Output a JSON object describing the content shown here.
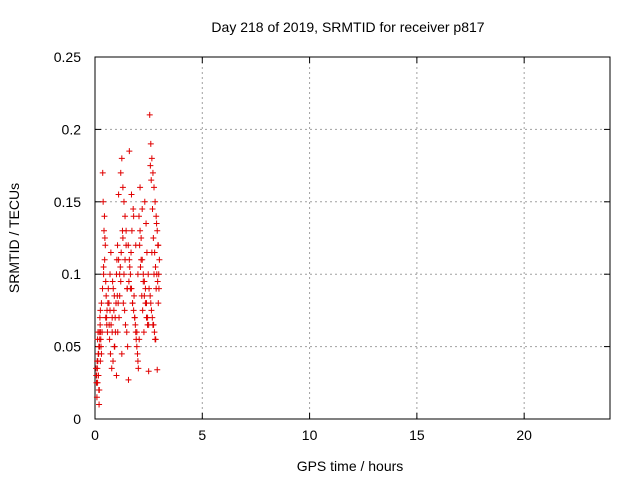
{
  "chart_data": {
    "type": "scatter",
    "title": "Day 218 of 2019, SRMTID for receiver p817",
    "xlabel": "GPS time / hours",
    "ylabel": "SRMTID / TECUs",
    "xlim": [
      0,
      24
    ],
    "ylim": [
      0,
      0.25
    ],
    "xticks": [
      0,
      5,
      10,
      15,
      20
    ],
    "xtick_labels": [
      "0",
      "5",
      "10",
      "15",
      "20"
    ],
    "yticks": [
      0,
      0.05,
      0.1,
      0.15,
      0.2,
      0.25
    ],
    "ytick_labels": [
      "0",
      "0.05",
      "0.1",
      "0.15",
      "0.2",
      "0.25"
    ],
    "grid": true,
    "marker": "+",
    "color": "#e00000",
    "series": [
      {
        "name": "p817",
        "x": [
          0.05,
          0.08,
          0.1,
          0.12,
          0.15,
          0.18,
          0.2,
          0.22,
          0.25,
          0.06,
          0.09,
          0.11,
          0.14,
          0.17,
          0.19,
          0.21,
          0.24,
          0.27,
          0.3,
          0.07,
          0.13,
          0.16,
          0.23,
          0.26,
          0.28,
          0.12,
          0.18,
          0.2,
          0.25,
          0.3,
          0.35,
          0.4,
          0.45,
          0.5,
          0.55,
          0.38,
          0.42,
          0.48,
          0.52,
          0.58,
          0.36,
          0.44,
          0.5,
          0.56,
          0.6,
          0.4,
          0.46,
          0.54,
          0.62,
          0.33,
          0.65,
          0.7,
          0.75,
          0.8,
          0.85,
          0.9,
          0.95,
          1.0,
          0.68,
          0.72,
          0.78,
          0.82,
          0.88,
          0.92,
          0.98,
          1.02,
          0.66,
          0.74,
          0.84,
          0.94,
          1.04,
          0.7,
          0.8,
          0.9,
          1.0,
          1.05,
          1.1,
          1.15,
          1.2,
          1.25,
          1.3,
          1.35,
          1.4,
          1.45,
          1.5,
          1.08,
          1.12,
          1.18,
          1.22,
          1.28,
          1.32,
          1.38,
          1.42,
          1.48,
          1.52,
          1.1,
          1.2,
          1.3,
          1.4,
          1.5,
          1.15,
          1.25,
          1.35,
          1.45,
          1.06,
          1.55,
          1.6,
          1.65,
          1.7,
          1.75,
          1.8,
          1.85,
          1.9,
          1.95,
          2.0,
          1.58,
          1.62,
          1.68,
          1.72,
          1.78,
          1.82,
          1.88,
          1.92,
          1.98,
          2.02,
          1.6,
          1.7,
          1.8,
          1.9,
          2.0,
          1.65,
          1.75,
          1.85,
          1.95,
          1.56,
          2.05,
          2.1,
          2.15,
          2.2,
          2.25,
          2.3,
          2.35,
          2.4,
          2.45,
          2.5,
          2.08,
          2.12,
          2.18,
          2.22,
          2.28,
          2.32,
          2.38,
          2.42,
          2.48,
          2.52,
          2.1,
          2.2,
          2.3,
          2.4,
          2.5,
          2.15,
          2.25,
          2.35,
          2.45,
          2.06,
          2.55,
          2.6,
          2.65,
          2.7,
          2.75,
          2.8,
          2.85,
          2.9,
          2.95,
          3.0,
          2.58,
          2.62,
          2.68,
          2.72,
          2.78,
          2.82,
          2.88,
          2.92,
          2.98,
          2.57,
          2.63,
          2.67,
          2.73,
          2.77,
          2.83,
          2.87,
          2.93,
          2.97,
          2.6,
          2.7,
          2.8,
          2.9,
          2.65,
          2.75,
          2.85,
          2.95
        ],
        "y": [
          0.035,
          0.03,
          0.04,
          0.025,
          0.045,
          0.05,
          0.02,
          0.055,
          0.04,
          0.03,
          0.015,
          0.035,
          0.06,
          0.045,
          0.01,
          0.05,
          0.065,
          0.055,
          0.045,
          0.025,
          0.04,
          0.03,
          0.07,
          0.06,
          0.05,
          0.055,
          0.02,
          0.06,
          0.075,
          0.08,
          0.09,
          0.1,
          0.11,
          0.07,
          0.065,
          0.15,
          0.13,
          0.12,
          0.085,
          0.06,
          0.17,
          0.14,
          0.095,
          0.075,
          0.08,
          0.105,
          0.125,
          0.07,
          0.09,
          0.06,
          0.08,
          0.075,
          0.065,
          0.07,
          0.09,
          0.085,
          0.06,
          0.1,
          0.055,
          0.045,
          0.035,
          0.095,
          0.075,
          0.05,
          0.08,
          0.11,
          0.065,
          0.115,
          0.04,
          0.07,
          0.085,
          0.1,
          0.06,
          0.05,
          0.03,
          0.12,
          0.11,
          0.1,
          0.095,
          0.18,
          0.16,
          0.15,
          0.14,
          0.12,
          0.09,
          0.08,
          0.07,
          0.105,
          0.115,
          0.13,
          0.08,
          0.075,
          0.065,
          0.06,
          0.05,
          0.155,
          0.17,
          0.125,
          0.11,
          0.09,
          0.085,
          0.045,
          0.1,
          0.13,
          0.06,
          0.12,
          0.11,
          0.1,
          0.09,
          0.08,
          0.075,
          0.07,
          0.06,
          0.05,
          0.04,
          0.095,
          0.105,
          0.115,
          0.13,
          0.145,
          0.085,
          0.065,
          0.055,
          0.045,
          0.035,
          0.185,
          0.155,
          0.14,
          0.12,
          0.1,
          0.09,
          0.08,
          0.07,
          0.06,
          0.027,
          0.14,
          0.13,
          0.125,
          0.11,
          0.1,
          0.095,
          0.09,
          0.08,
          0.07,
          0.065,
          0.12,
          0.105,
          0.085,
          0.075,
          0.06,
          0.15,
          0.135,
          0.115,
          0.1,
          0.09,
          0.16,
          0.145,
          0.085,
          0.07,
          0.033,
          0.11,
          0.095,
          0.08,
          0.065,
          0.055,
          0.21,
          0.19,
          0.18,
          0.17,
          0.16,
          0.15,
          0.14,
          0.13,
          0.12,
          0.11,
          0.175,
          0.165,
          0.145,
          0.125,
          0.115,
          0.105,
          0.1,
          0.095,
          0.09,
          0.085,
          0.075,
          0.07,
          0.065,
          0.06,
          0.055,
          0.135,
          0.12,
          0.1,
          0.08,
          0.065,
          0.055,
          0.034,
          0.115,
          0.1,
          0.09,
          0.08
        ]
      }
    ]
  }
}
